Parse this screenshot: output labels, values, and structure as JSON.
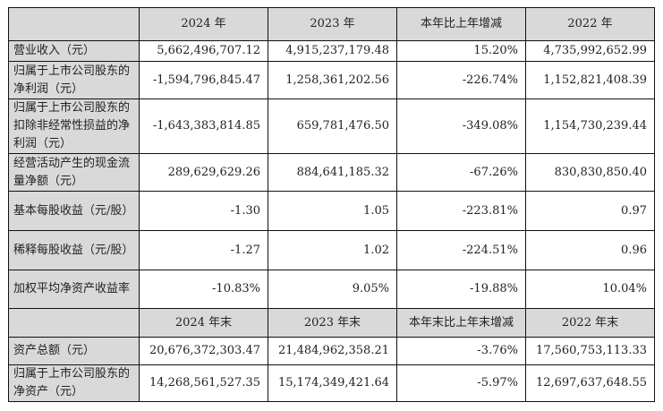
{
  "header1": [
    "",
    "2024 年",
    "2023 年",
    "本年比上年增减",
    "2022 年"
  ],
  "rows1": [
    {
      "label": "营业收入（元）",
      "values": [
        "5,662,496,707.12",
        "4,915,237,179.48",
        "15.20%",
        "4,735,992,652.99"
      ]
    },
    {
      "label": "归属于上市公司股东的净利润（元）",
      "values": [
        "-1,594,796,845.47",
        "1,258,361,202.56",
        "-226.74%",
        "1,152,821,408.39"
      ]
    },
    {
      "label": "归属于上市公司股东的扣除非经常性损益的净利润（元）",
      "values": [
        "-1,643,383,814.85",
        "659,781,476.50",
        "-349.08%",
        "1,154,730,239.44"
      ]
    },
    {
      "label": "经营活动产生的现金流量净额（元）",
      "values": [
        "289,629,629.26",
        "884,641,185.32",
        "-67.26%",
        "830,830,850.40"
      ]
    },
    {
      "label": "基本每股收益（元/股）",
      "values": [
        "-1.30",
        "1.05",
        "-223.81%",
        "0.97"
      ]
    },
    {
      "label": "稀释每股收益（元/股）",
      "values": [
        "-1.27",
        "1.02",
        "-224.51%",
        "0.96"
      ]
    },
    {
      "label": "加权平均净资产收益率",
      "values": [
        "-10.83%",
        "9.05%",
        "-19.88%",
        "10.04%"
      ]
    }
  ],
  "header2": [
    "",
    "2024 年末",
    "2023 年末",
    "本年末比上年末增减",
    "2022 年末"
  ],
  "rows2": [
    {
      "label": "资产总额（元）",
      "values": [
        "20,676,372,303.47",
        "21,484,962,358.21",
        "-3.76%",
        "17,560,753,113.33"
      ]
    },
    {
      "label": "归属于上市公司股东的净资产（元）",
      "values": [
        "14,268,561,527.35",
        "15,174,349,421.64",
        "-5.97%",
        "12,697,637,648.55"
      ]
    }
  ]
}
